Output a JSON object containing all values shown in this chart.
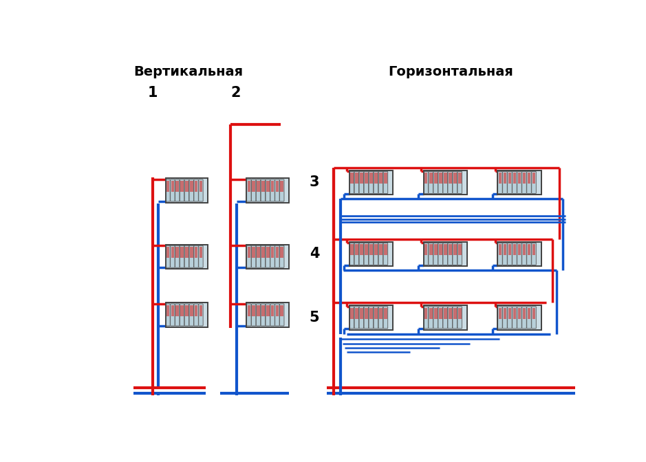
{
  "title_left": "Вертикальная",
  "title_right": "Горизонтальная",
  "red": "#dd1111",
  "blue": "#1155cc",
  "label1": "1",
  "label2": "2",
  "label3": "3",
  "label4": "4",
  "label5": "5",
  "bg": "#ffffff",
  "lw_main": 3.0,
  "lw_branch": 2.5
}
